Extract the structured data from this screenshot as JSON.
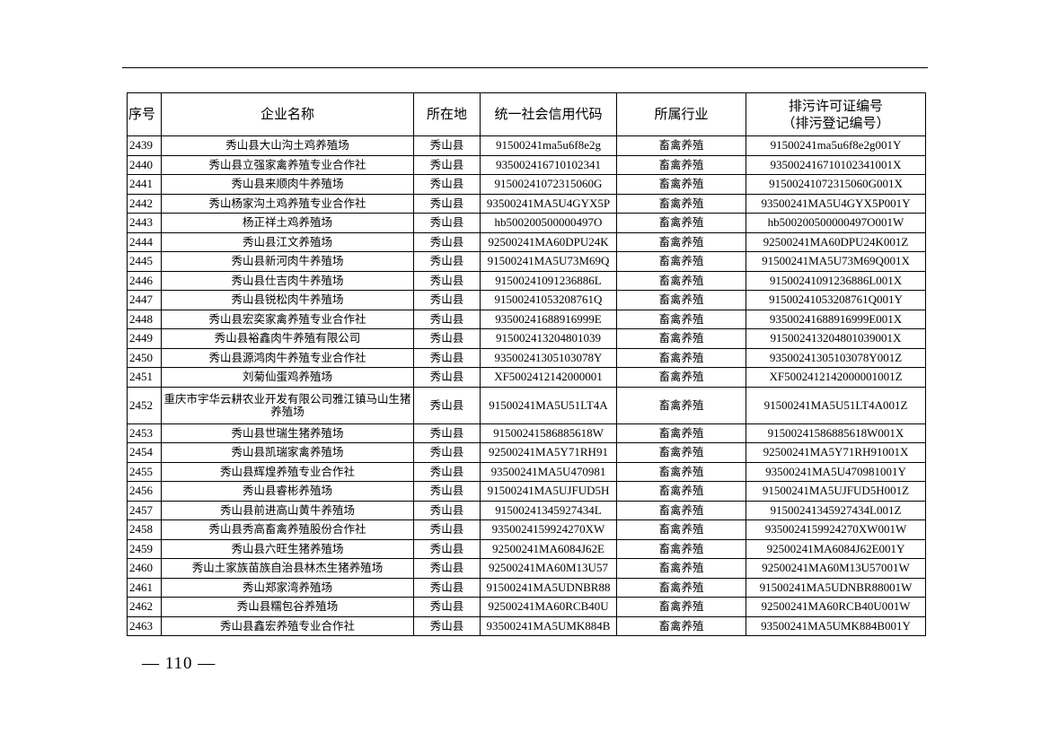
{
  "headers": {
    "seq": "序号",
    "name": "企业名称",
    "location": "所在地",
    "credit_code": "统一社会信用代码",
    "industry": "所属行业",
    "permit_line1": "排污许可证编号",
    "permit_line2": "（排污登记编号）"
  },
  "rows": [
    {
      "seq": "2439",
      "name": "秀山县大山沟土鸡养殖场",
      "location": "秀山县",
      "code": "91500241ma5u6f8e2g",
      "industry": "畜禽养殖",
      "permit": "91500241ma5u6f8e2g001Y"
    },
    {
      "seq": "2440",
      "name": "秀山县立强家禽养殖专业合作社",
      "location": "秀山县",
      "code": "935002416710102341",
      "industry": "畜禽养殖",
      "permit": "935002416710102341001X"
    },
    {
      "seq": "2441",
      "name": "秀山县来顺肉牛养殖场",
      "location": "秀山县",
      "code": "91500241072315060G",
      "industry": "畜禽养殖",
      "permit": "91500241072315060G001X"
    },
    {
      "seq": "2442",
      "name": "秀山杨家沟土鸡养殖专业合作社",
      "location": "秀山县",
      "code": "93500241MA5U4GYX5P",
      "industry": "畜禽养殖",
      "permit": "93500241MA5U4GYX5P001Y"
    },
    {
      "seq": "2443",
      "name": "杨正祥土鸡养殖场",
      "location": "秀山县",
      "code": "hb500200500000497O",
      "industry": "畜禽养殖",
      "permit": "hb500200500000497O001W"
    },
    {
      "seq": "2444",
      "name": "秀山县江文养殖场",
      "location": "秀山县",
      "code": "92500241MA60DPU24K",
      "industry": "畜禽养殖",
      "permit": "92500241MA60DPU24K001Z"
    },
    {
      "seq": "2445",
      "name": "秀山县新河肉牛养殖场",
      "location": "秀山县",
      "code": "91500241MA5U73M69Q",
      "industry": "畜禽养殖",
      "permit": "91500241MA5U73M69Q001X"
    },
    {
      "seq": "2446",
      "name": "秀山县仕吉肉牛养殖场",
      "location": "秀山县",
      "code": "91500241091236886L",
      "industry": "畜禽养殖",
      "permit": "91500241091236886L001X"
    },
    {
      "seq": "2447",
      "name": "秀山县锐松肉牛养殖场",
      "location": "秀山县",
      "code": "91500241053208761Q",
      "industry": "畜禽养殖",
      "permit": "91500241053208761Q001Y"
    },
    {
      "seq": "2448",
      "name": "秀山县宏奕家禽养殖专业合作社",
      "location": "秀山县",
      "code": "93500241688916999E",
      "industry": "畜禽养殖",
      "permit": "93500241688916999E001X"
    },
    {
      "seq": "2449",
      "name": "秀山县裕鑫肉牛养殖有限公司",
      "location": "秀山县",
      "code": "915002413204801039",
      "industry": "畜禽养殖",
      "permit": "915002413204801039001X"
    },
    {
      "seq": "2450",
      "name": "秀山县源鸿肉牛养殖专业合作社",
      "location": "秀山县",
      "code": "93500241305103078Y",
      "industry": "畜禽养殖",
      "permit": "93500241305103078Y001Z"
    },
    {
      "seq": "2451",
      "name": "刘菊仙蛋鸡养殖场",
      "location": "秀山县",
      "code": "XF5002412142000001",
      "industry": "畜禽养殖",
      "permit": "XF5002412142000001001Z"
    },
    {
      "seq": "2452",
      "name": "重庆市宇华云耕农业开发有限公司雅江镇马山生猪养殖场",
      "location": "秀山县",
      "code": "91500241MA5U51LT4A",
      "industry": "畜禽养殖",
      "permit": "91500241MA5U51LT4A001Z"
    },
    {
      "seq": "2453",
      "name": "秀山县世瑞生猪养殖场",
      "location": "秀山县",
      "code": "91500241586885618W",
      "industry": "畜禽养殖",
      "permit": "91500241586885618W001X"
    },
    {
      "seq": "2454",
      "name": "秀山县凯瑞家禽养殖场",
      "location": "秀山县",
      "code": "92500241MA5Y71RH91",
      "industry": "畜禽养殖",
      "permit": "92500241MA5Y71RH91001X"
    },
    {
      "seq": "2455",
      "name": "秀山县辉煌养殖专业合作社",
      "location": "秀山县",
      "code": "93500241MA5U470981",
      "industry": "畜禽养殖",
      "permit": "93500241MA5U470981001Y"
    },
    {
      "seq": "2456",
      "name": "秀山县睿彬养殖场",
      "location": "秀山县",
      "code": "91500241MA5UJFUD5H",
      "industry": "畜禽养殖",
      "permit": "91500241MA5UJFUD5H001Z"
    },
    {
      "seq": "2457",
      "name": "秀山县前进高山黄牛养殖场",
      "location": "秀山县",
      "code": "91500241345927434L",
      "industry": "畜禽养殖",
      "permit": "91500241345927434L001Z"
    },
    {
      "seq": "2458",
      "name": "秀山县秀高畜禽养殖股份合作社",
      "location": "秀山县",
      "code": "9350024159924270XW",
      "industry": "畜禽养殖",
      "permit": "9350024159924270XW001W"
    },
    {
      "seq": "2459",
      "name": "秀山县六旺生猪养殖场",
      "location": "秀山县",
      "code": "92500241MA6084J62E",
      "industry": "畜禽养殖",
      "permit": "92500241MA6084J62E001Y"
    },
    {
      "seq": "2460",
      "name": "秀山土家族苗族自治县林杰生猪养殖场",
      "location": "秀山县",
      "code": "92500241MA60M13U57",
      "industry": "畜禽养殖",
      "permit": "92500241MA60M13U57001W"
    },
    {
      "seq": "2461",
      "name": "秀山郑家湾养殖场",
      "location": "秀山县",
      "code": "91500241MA5UDNBR88",
      "industry": "畜禽养殖",
      "permit": "91500241MA5UDNBR88001W"
    },
    {
      "seq": "2462",
      "name": "秀山县糯包谷养殖场",
      "location": "秀山县",
      "code": "92500241MA60RCB40U",
      "industry": "畜禽养殖",
      "permit": "92500241MA60RCB40U001W"
    },
    {
      "seq": "2463",
      "name": "秀山县鑫宏养殖专业合作社",
      "location": "秀山县",
      "code": "93500241MA5UMK884B",
      "industry": "畜禽养殖",
      "permit": "93500241MA5UMK884B001Y"
    }
  ],
  "footer": {
    "page_number": "— 110 —"
  }
}
